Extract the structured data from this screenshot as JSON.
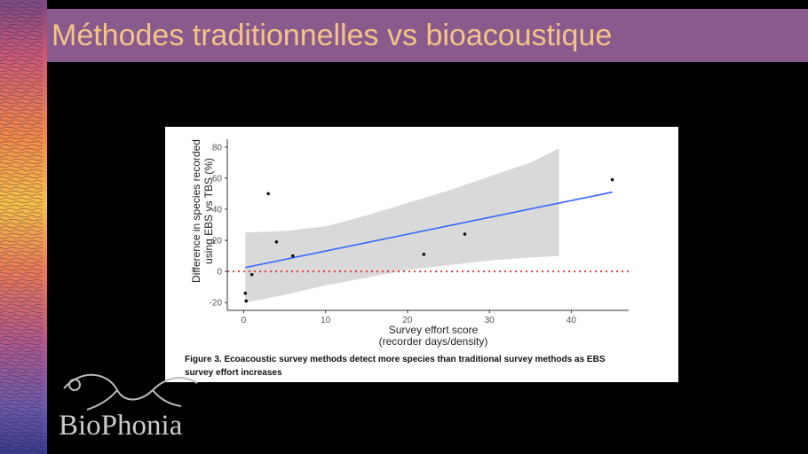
{
  "slide": {
    "title": "Méthodes traditionnelles vs bioacoustique",
    "accent_color": "#8a5a8c",
    "title_color": "#f2c48a",
    "logo_text": "BioPhonia"
  },
  "figure": {
    "caption_line1": "Figure 3. Ecoacoustic survey methods detect more species than traditional survey methods as EBS",
    "caption_line2": "survey effort increases"
  },
  "chart_data": {
    "type": "scatter",
    "title": "",
    "xlabel_line1": "Survey effort score",
    "xlabel_line2": "(recorder days/density)",
    "ylabel_line1": "Difference in species recorded",
    "ylabel_line2": "using EBS vs TBS (%)",
    "xlim": [
      -2,
      47
    ],
    "ylim": [
      -25,
      85
    ],
    "x_ticks": [
      0,
      10,
      20,
      30,
      40
    ],
    "y_ticks": [
      -20,
      0,
      20,
      40,
      60,
      80
    ],
    "points": [
      {
        "x": 0.2,
        "y": -14
      },
      {
        "x": 0.3,
        "y": -19
      },
      {
        "x": 1.0,
        "y": -2
      },
      {
        "x": 3.0,
        "y": 50
      },
      {
        "x": 4.0,
        "y": 19
      },
      {
        "x": 6.0,
        "y": 10
      },
      {
        "x": 22.0,
        "y": 11
      },
      {
        "x": 27.0,
        "y": 24
      },
      {
        "x": 45.0,
        "y": 59
      }
    ],
    "trend_line": {
      "x": [
        0.2,
        45.0
      ],
      "y": [
        2.5,
        51
      ],
      "color": "#3366ff"
    },
    "confidence_band": {
      "x": [
        0.2,
        5,
        10,
        15,
        20,
        25,
        30,
        35,
        38.5
      ],
      "upper": [
        25,
        26,
        29,
        36,
        44,
        52,
        61,
        70,
        79
      ],
      "lower": [
        -20,
        -15,
        -9,
        -4,
        1,
        4,
        7,
        9,
        10
      ],
      "color": "#d9d9d9"
    },
    "reference_line": {
      "y": 0,
      "style": "dotted",
      "color": "#e53935"
    },
    "grid": false
  }
}
